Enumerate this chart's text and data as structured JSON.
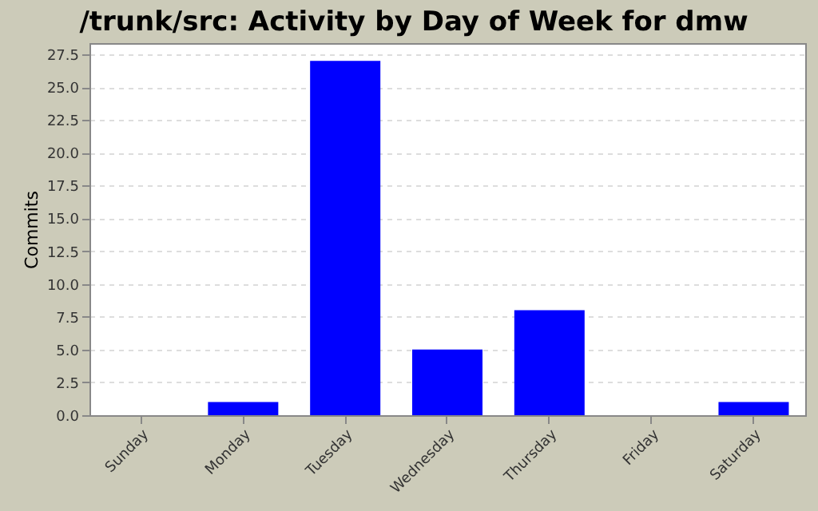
{
  "chart_data": {
    "type": "bar",
    "title": "/trunk/src: Activity by Day of Week for dmw",
    "ylabel": "Commits",
    "categories": [
      "Sunday",
      "Monday",
      "Tuesday",
      "Wednesday",
      "Thursday",
      "Friday",
      "Saturday"
    ],
    "values": [
      0,
      1,
      27,
      5,
      8,
      0,
      1
    ],
    "color": "#0000ff",
    "ylim": [
      0,
      28.35
    ],
    "yticks": [
      {
        "value": 0,
        "label": "0.0"
      },
      {
        "value": 2.5,
        "label": "2.5"
      },
      {
        "value": 5,
        "label": "5.0"
      },
      {
        "value": 7.5,
        "label": "7.5"
      },
      {
        "value": 10,
        "label": "10.0"
      },
      {
        "value": 12.5,
        "label": "12.5"
      },
      {
        "value": 15,
        "label": "15.0"
      },
      {
        "value": 17.5,
        "label": "17.5"
      },
      {
        "value": 20,
        "label": "20.0"
      },
      {
        "value": 22.5,
        "label": "22.5"
      },
      {
        "value": 25,
        "label": "25.0"
      },
      {
        "value": 27.5,
        "label": "27.5"
      }
    ],
    "grid": "y"
  }
}
